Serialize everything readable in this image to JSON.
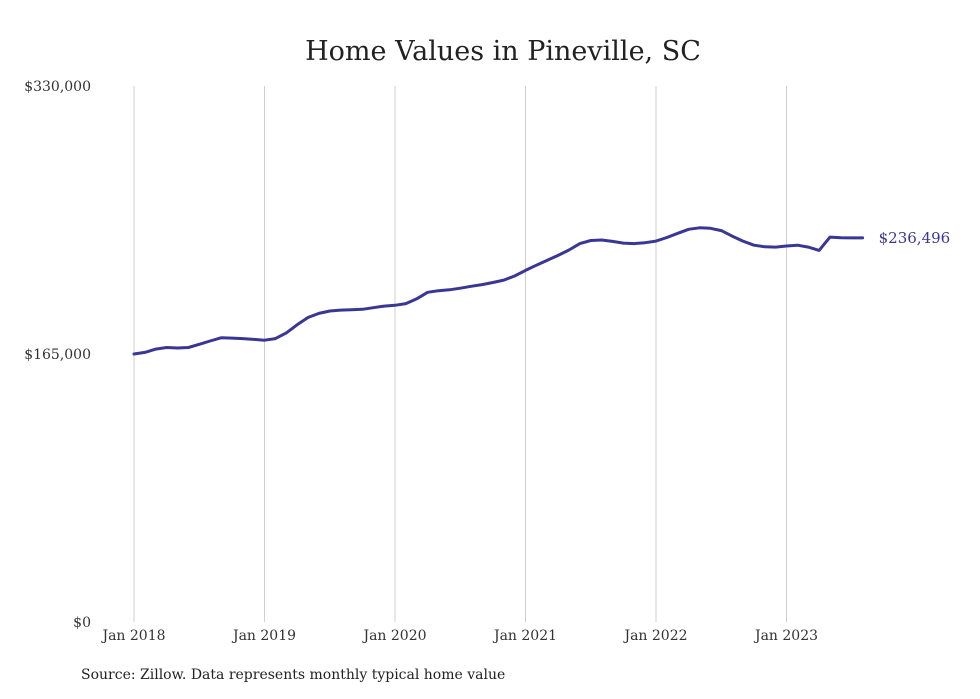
{
  "chart_data": {
    "type": "line",
    "title": "Home Values in Pineville, SC",
    "xlabel": "",
    "ylabel": "",
    "ylim": [
      0,
      330000
    ],
    "y_ticks": [
      "$0",
      "$165,000",
      "$330,000"
    ],
    "y_tick_values": [
      0,
      165000,
      330000
    ],
    "x_ticks": [
      "Jan 2018",
      "Jan 2019",
      "Jan 2020",
      "Jan 2021",
      "Jan 2022",
      "Jan 2023"
    ],
    "x_tick_values": [
      "2018-01",
      "2019-01",
      "2020-01",
      "2021-01",
      "2022-01",
      "2023-01"
    ],
    "xlim": [
      "2018-01",
      "2023-12"
    ],
    "grid": "vertical",
    "legend": "none",
    "line_color": "#3a3794",
    "end_label": "$236,496",
    "series": [
      {
        "x": [
          "2018-01",
          "2018-02",
          "2018-03",
          "2018-04",
          "2018-05",
          "2018-06",
          "2018-07",
          "2018-08",
          "2018-09",
          "2018-10",
          "2018-11",
          "2018-12",
          "2019-01",
          "2019-02",
          "2019-03",
          "2019-04",
          "2019-05",
          "2019-06",
          "2019-07",
          "2019-08",
          "2019-09",
          "2019-10",
          "2019-11",
          "2019-12",
          "2020-01",
          "2020-02",
          "2020-03",
          "2020-04",
          "2020-05",
          "2020-06",
          "2020-07",
          "2020-08",
          "2020-09",
          "2020-10",
          "2020-11",
          "2020-12",
          "2021-01",
          "2021-02",
          "2021-03",
          "2021-04",
          "2021-05",
          "2021-06",
          "2021-07",
          "2021-08",
          "2021-09",
          "2021-10",
          "2021-11",
          "2021-12",
          "2022-01",
          "2022-02",
          "2022-03",
          "2022-04",
          "2022-05",
          "2022-06",
          "2022-07",
          "2022-08",
          "2022-09",
          "2022-10",
          "2022-11",
          "2022-12",
          "2023-01",
          "2023-02",
          "2023-03",
          "2023-04",
          "2023-05",
          "2023-06",
          "2023-07",
          "2023-08"
        ],
        "values": [
          165000,
          166000,
          168000,
          169000,
          168700,
          169000,
          171000,
          173000,
          175000,
          174800,
          174500,
          174000,
          173500,
          174500,
          178000,
          183000,
          187500,
          190000,
          191500,
          192000,
          192200,
          192500,
          193500,
          194500,
          195000,
          196000,
          199000,
          203000,
          204000,
          204500,
          205500,
          206700,
          207700,
          209000,
          210500,
          213000,
          216500,
          219700,
          222700,
          225700,
          229000,
          233000,
          234900,
          235200,
          234300,
          233300,
          233000,
          233500,
          234500,
          236700,
          239300,
          241800,
          242700,
          242400,
          241000,
          237600,
          234500,
          232000,
          231000,
          230800,
          231500,
          232000,
          230800,
          228800,
          237000,
          236600,
          236500,
          236496
        ]
      }
    ]
  },
  "footer": {
    "source": "Source: Zillow. Data represents monthly typical home value"
  }
}
